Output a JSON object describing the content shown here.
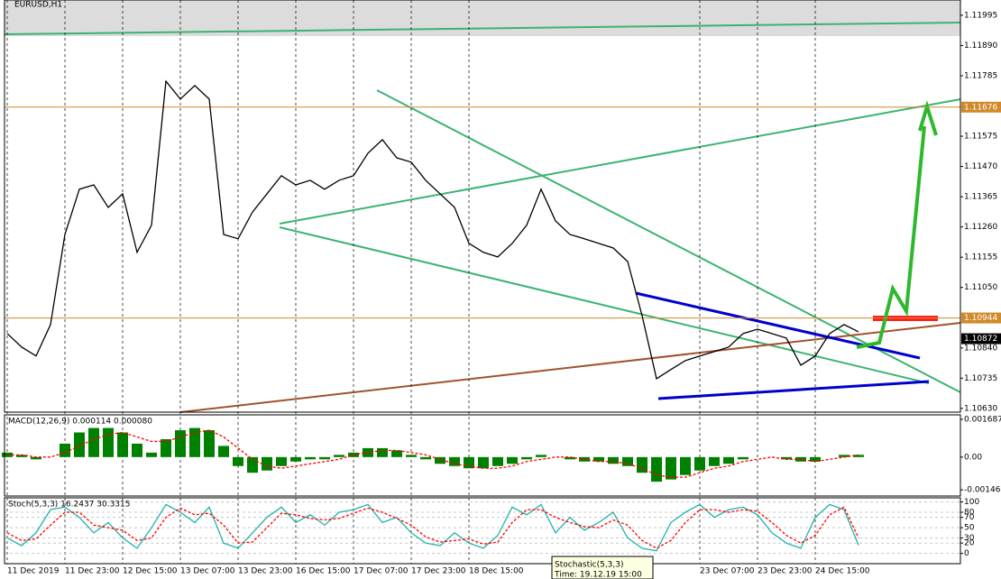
{
  "chart_data": [
    {
      "type": "line",
      "title": "EURUSD,H1",
      "categories": [
        "11 Dec 2019",
        null,
        null,
        null,
        "11 Dec 23:00",
        null,
        null,
        null,
        "12 Dec 15:00",
        null,
        null,
        null,
        "13 Dec 07:00",
        null,
        null,
        null,
        "13 Dec 23:00",
        null,
        null,
        null,
        "16 Dec 15:00",
        null,
        null,
        null,
        "17 Dec 07:00",
        null,
        null,
        null,
        "17 Dec 23:00",
        null,
        null,
        null,
        "18 Dec 15:00",
        null,
        null,
        null,
        null,
        null,
        null,
        null,
        null,
        null,
        null,
        null,
        null,
        null,
        null,
        null,
        "23 Dec 07:00",
        null,
        null,
        null,
        "23 Dec 23:00",
        null,
        null,
        null,
        "24 Dec 15:00",
        null,
        null,
        null
      ],
      "color": "#000000",
      "values": [
        1.1089,
        1.10843,
        1.10812,
        1.10921,
        1.11234,
        1.11391,
        1.11406,
        1.11328,
        1.11375,
        1.11172,
        1.11266,
        1.11766,
        1.11704,
        1.11751,
        1.11704,
        1.11234,
        1.11219,
        1.11312,
        1.11375,
        1.11438,
        1.11406,
        1.11422,
        1.11391,
        1.11422,
        1.11438,
        1.11516,
        1.11563,
        1.115,
        1.11485,
        1.11422,
        1.11375,
        1.11328,
        1.11203,
        1.11172,
        1.11156,
        1.11203,
        1.11266,
        1.11391,
        1.11281,
        1.11234,
        1.11219,
        1.11203,
        1.11187,
        1.1114,
        1.10952,
        1.10733,
        1.10765,
        1.10796,
        1.10812,
        1.10827,
        1.10843,
        1.1089,
        1.10905,
        1.1089,
        1.10874,
        1.1078,
        1.10812,
        1.1089,
        1.10921,
        1.10896
      ],
      "ylim": [
        1.10617,
        1.12048
      ],
      "yticks": [
        1.11995,
        {
          "value": 1.1189,
          "label": "1.11890"
        },
        1.11785,
        1.11575,
        {
          "value": 1.1147,
          "label": "1.11470"
        },
        1.11365,
        {
          "value": 1.1126,
          "label": "1.11260"
        },
        1.11155,
        {
          "value": 1.1105,
          "label": "1.11050"
        },
        {
          "value": 1.1084,
          "label": "1.10840"
        },
        1.10735,
        {
          "value": 1.1063,
          "label": "1.10630"
        }
      ],
      "levels": [
        {
          "value": 1.11676,
          "color": "#d08a2a"
        },
        {
          "value": 1.10944,
          "color": "#d08a2a"
        },
        {
          "value": 1.10872,
          "color": "#000000"
        }
      ]
    },
    {
      "type": "bar",
      "title": "MACD(12,26,9) 0.000114 0.000080",
      "color": "#008000",
      "values": [
        0.0002,
        0.0001,
        -0.0001,
        0.0,
        0.0006,
        0.0011,
        0.0013,
        0.0013,
        0.0011,
        0.0006,
        0.0002,
        0.0008,
        0.0012,
        0.0013,
        0.0012,
        0.0005,
        -0.0004,
        -0.0007,
        -0.0006,
        -0.0004,
        -0.0002,
        -0.0001,
        -0.0001,
        0.0001,
        0.0002,
        0.0004,
        0.0004,
        0.0003,
        0.0001,
        -0.0001,
        -0.0003,
        -0.0004,
        -0.0005,
        -0.0005,
        -0.0004,
        -0.0003,
        -0.0001,
        0.0001,
        0.0,
        -0.0001,
        -0.0002,
        -0.0002,
        -0.0003,
        -0.0004,
        -0.0007,
        -0.0011,
        -0.001,
        -0.0008,
        -0.0006,
        -0.0004,
        -0.0003,
        -0.0001,
        0.0,
        0.0,
        -0.0001,
        -0.0002,
        -0.0002,
        0.0,
        0.0001,
        0.0001
      ],
      "signal": {
        "color": "#ff0000",
        "values": [
          0.0001,
          0.0001,
          0.0,
          0.0,
          0.0002,
          0.0005,
          0.0008,
          0.001,
          0.0011,
          0.0009,
          0.0007,
          0.0007,
          0.0009,
          0.0011,
          0.0012,
          0.0009,
          0.0004,
          -0.0001,
          -0.0004,
          -0.0005,
          -0.0004,
          -0.0003,
          -0.0002,
          -0.0001,
          0.0001,
          0.0002,
          0.0003,
          0.0003,
          0.0002,
          0.0001,
          -0.0001,
          -0.0003,
          -0.0004,
          -0.0005,
          -0.0005,
          -0.0004,
          -0.0002,
          -0.0001,
          0.0,
          0.0,
          -0.0001,
          -0.0002,
          -0.0002,
          -0.0003,
          -0.0005,
          -0.0008,
          -0.0009,
          -0.0009,
          -0.0007,
          -0.0005,
          -0.0004,
          -0.0002,
          -0.0001,
          0.0,
          -0.0001,
          -0.0001,
          -0.0002,
          -0.0001,
          0.0,
          0.0001
        ]
      },
      "ylim": [
        -0.00174,
        0.001887
      ],
      "yticks": [
        0.001687,
        {
          "value": 0,
          "label": "0.00"
        },
        -0.001462
      ]
    },
    {
      "type": "line",
      "title": "Stoch(5,3,3) 16.2437 30.3315",
      "series": [
        {
          "color": "#20b2aa",
          "values": [
            30,
            15,
            40,
            85,
            90,
            70,
            40,
            60,
            30,
            10,
            50,
            95,
            80,
            60,
            90,
            20,
            10,
            40,
            70,
            90,
            60,
            75,
            55,
            80,
            85,
            95,
            60,
            70,
            40,
            20,
            15,
            40,
            20,
            10,
            35,
            90,
            75,
            95,
            40,
            70,
            45,
            60,
            80,
            30,
            10,
            5,
            60,
            80,
            95,
            70,
            85,
            90,
            75,
            40,
            20,
            10,
            70,
            95,
            85,
            16
          ]
        },
        {
          "color": "#ff0000",
          "values": [
            40,
            25,
            28,
            55,
            80,
            80,
            55,
            50,
            45,
            25,
            30,
            70,
            88,
            75,
            78,
            55,
            20,
            22,
            50,
            78,
            75,
            68,
            65,
            68,
            78,
            88,
            80,
            68,
            55,
            32,
            22,
            25,
            28,
            18,
            22,
            60,
            85,
            85,
            70,
            60,
            52,
            50,
            65,
            55,
            25,
            10,
            25,
            60,
            85,
            85,
            80,
            85,
            82,
            60,
            35,
            20,
            35,
            75,
            90,
            30
          ]
        }
      ],
      "ylim": [
        -20,
        108
      ],
      "yticks": [
        100,
        80,
        70,
        50,
        30,
        20,
        0
      ]
    }
  ],
  "tooltip": {
    "title": "Stochastic(5,3,3)",
    "time": "Time: 19.12.19 15:00"
  }
}
